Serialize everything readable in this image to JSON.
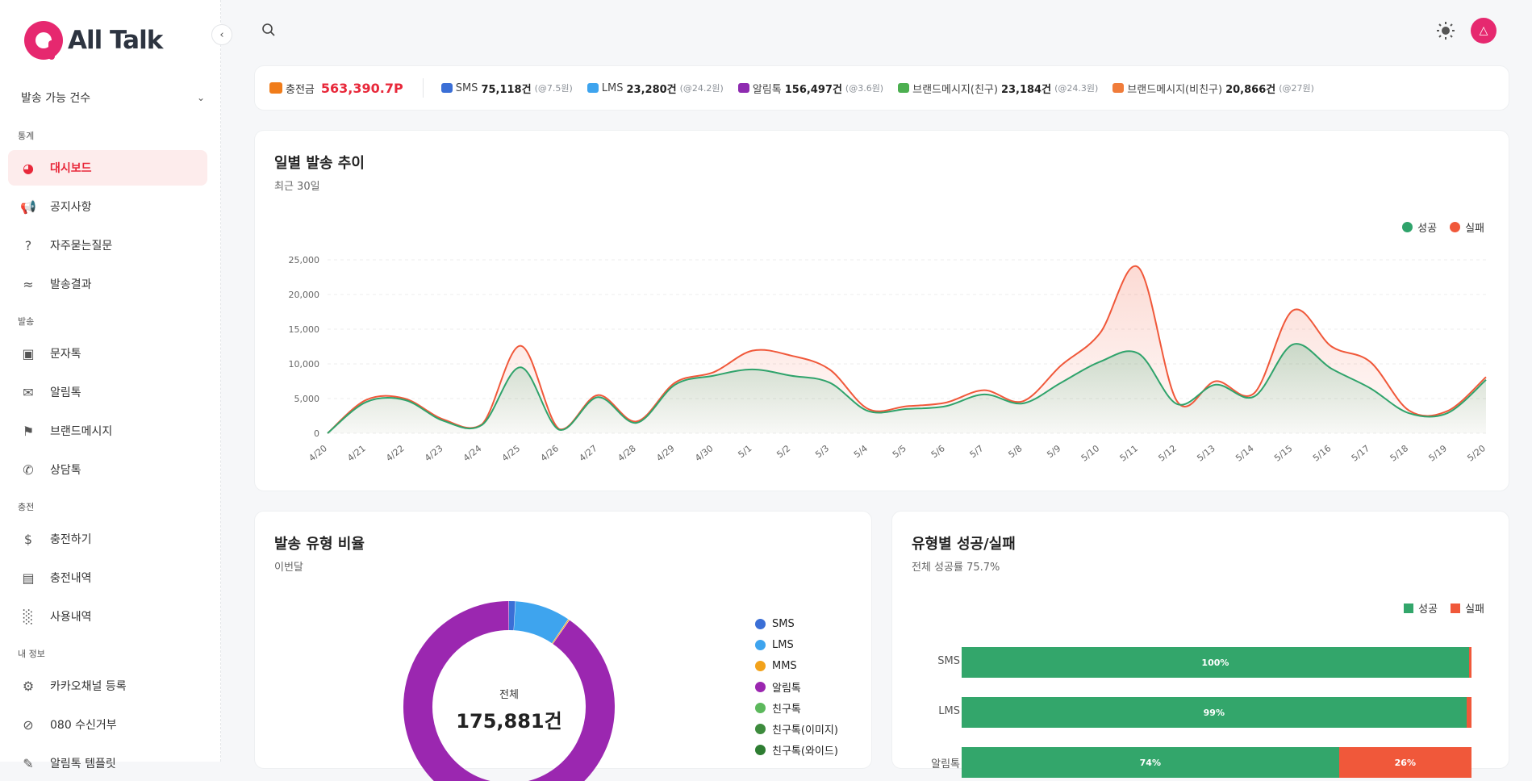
{
  "brand": {
    "name": "All Talk"
  },
  "sidebar": {
    "accordion_label": "발송 가능 건수",
    "sections": [
      {
        "label": "통계",
        "items": [
          {
            "label": "대시보드",
            "icon": "gauge-icon",
            "active": true
          },
          {
            "label": "공지사항",
            "icon": "megaphone-icon"
          },
          {
            "label": "자주묻는질문",
            "icon": "question-icon"
          },
          {
            "label": "발송결과",
            "icon": "trend-icon"
          }
        ]
      },
      {
        "label": "발송",
        "items": [
          {
            "label": "문자톡",
            "icon": "chat-icon"
          },
          {
            "label": "알림톡",
            "icon": "mail-icon"
          },
          {
            "label": "브랜드메시지",
            "icon": "bell-icon"
          },
          {
            "label": "상담톡",
            "icon": "phone-icon"
          }
        ]
      },
      {
        "label": "충전",
        "items": [
          {
            "label": "충전하기",
            "icon": "dollar-icon"
          },
          {
            "label": "충전내역",
            "icon": "card-icon"
          },
          {
            "label": "사용내역",
            "icon": "bar-chart-icon"
          }
        ]
      },
      {
        "label": "내 정보",
        "items": [
          {
            "label": "카카오채널 등록",
            "icon": "channel-icon"
          },
          {
            "label": "080 수신거부",
            "icon": "block-icon"
          },
          {
            "label": "알림톡 템플릿",
            "icon": "template-icon"
          }
        ]
      }
    ]
  },
  "balance": {
    "charge_label": "충전금",
    "charge_value": "563,390.7P",
    "items": [
      {
        "name": "SMS",
        "value": "75,118건",
        "rate": "(@7.5원)",
        "color": "#3b6fd6"
      },
      {
        "name": "LMS",
        "value": "23,280건",
        "rate": "(@24.2원)",
        "color": "#3ea4ee"
      },
      {
        "name": "알림톡",
        "value": "156,497건",
        "rate": "(@3.6원)",
        "color": "#8e2bb0"
      },
      {
        "name": "브랜드메시지(친구)",
        "value": "23,184건",
        "rate": "(@24.3원)",
        "color": "#4caf50"
      },
      {
        "name": "브랜드메시지(비친구)",
        "value": "20,866건",
        "rate": "(@27원)",
        "color": "#f07c3a"
      }
    ]
  },
  "trend": {
    "title": "일별 발송 추이",
    "subtitle": "최근 30일",
    "legend": [
      {
        "name": "성공",
        "color": "#2fa36b"
      },
      {
        "name": "실패",
        "color": "#f0583a"
      }
    ]
  },
  "ratio": {
    "title": "발송 유형 비율",
    "subtitle": "이번달",
    "center_label": "전체",
    "center_value": "175,881건",
    "legend": [
      {
        "name": "SMS",
        "color": "#3b6fd6"
      },
      {
        "name": "LMS",
        "color": "#3ea4ee"
      },
      {
        "name": "MMS",
        "color": "#f2a21b"
      },
      {
        "name": "알림톡",
        "color": "#9b27b0"
      },
      {
        "name": "친구톡",
        "color": "#5cb85c"
      },
      {
        "name": "친구톡(이미지)",
        "color": "#3d8b3d"
      },
      {
        "name": "친구톡(와이드)",
        "color": "#2e7d32"
      }
    ]
  },
  "success": {
    "title": "유형별 성공/실패",
    "subtitle": "전체 성공률 75.7%",
    "legend": [
      {
        "name": "성공",
        "color": "#33a66b"
      },
      {
        "name": "실패",
        "color": "#f0583a"
      }
    ]
  },
  "chart_data": [
    {
      "type": "area",
      "title": "일별 발송 추이",
      "x": [
        "4/20",
        "4/21",
        "4/22",
        "4/23",
        "4/24",
        "4/25",
        "4/26",
        "4/27",
        "4/28",
        "4/29",
        "4/30",
        "5/1",
        "5/2",
        "5/3",
        "5/4",
        "5/5",
        "5/6",
        "5/7",
        "5/8",
        "5/9",
        "5/10",
        "5/11",
        "5/12",
        "5/13",
        "5/14",
        "5/15",
        "5/16",
        "5/17",
        "5/18",
        "5/19",
        "5/20"
      ],
      "ylim": [
        0,
        25000
      ],
      "yticks": [
        "0",
        "5,000",
        "10,000",
        "15,000",
        "20,000",
        "25,000"
      ],
      "series": [
        {
          "name": "성공",
          "values": [
            0,
            4500,
            4800,
            1800,
            1200,
            9500,
            500,
            5200,
            1500,
            7000,
            8300,
            9200,
            8300,
            7300,
            3200,
            3500,
            3900,
            5600,
            4300,
            7300,
            10300,
            11500,
            4200,
            7000,
            5300,
            12800,
            9300,
            6500,
            2900,
            2900,
            7700
          ]
        },
        {
          "name": "실패",
          "values": [
            0,
            4800,
            5000,
            2000,
            1300,
            12600,
            600,
            5500,
            1700,
            7300,
            8800,
            11900,
            11200,
            9200,
            3500,
            3900,
            4400,
            6200,
            4600,
            9800,
            14400,
            23900,
            4600,
            7500,
            5800,
            17700,
            12500,
            10300,
            3300,
            3200,
            8100
          ]
        }
      ]
    },
    {
      "type": "pie",
      "title": "발송 유형 비율",
      "categories": [
        "SMS",
        "LMS",
        "MMS",
        "알림톡",
        "친구톡",
        "친구톡(이미지)",
        "친구톡(와이드)"
      ],
      "values": [
        1.0,
        8.5,
        0.2,
        90.3,
        0,
        0,
        0
      ]
    },
    {
      "type": "bar",
      "title": "유형별 성공/실패",
      "categories": [
        "SMS",
        "LMS",
        "알림톡"
      ],
      "series": [
        {
          "name": "성공",
          "values": [
            100,
            99,
            74
          ]
        },
        {
          "name": "실패",
          "values": [
            0.5,
            1,
            26
          ]
        }
      ],
      "labels": [
        {
          "success": "100%",
          "fail": ""
        },
        {
          "success": "99%",
          "fail": ""
        },
        {
          "success": "74%",
          "fail": "26%"
        }
      ]
    }
  ]
}
